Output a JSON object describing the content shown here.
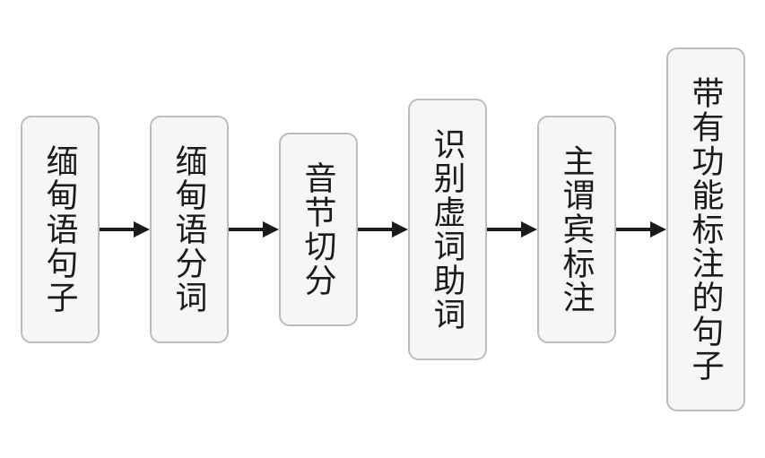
{
  "flowchart": {
    "type": "flowchart",
    "direction": "horizontal",
    "background_color": "#ffffff",
    "node_style": {
      "fill": "#f6f6f6",
      "border_color": "#bcbcbc",
      "border_width": 2,
      "border_radius": 12,
      "font_size": 36,
      "font_color": "#1b1b1b",
      "font_weight": "400",
      "width": 88,
      "padding_vertical": 30
    },
    "arrow_style": {
      "color": "#1b1b1b",
      "shaft_width": 4,
      "head_width": 18,
      "head_length": 18,
      "total_length": 56
    },
    "nodes": [
      {
        "id": "n1",
        "label": "缅甸语句子"
      },
      {
        "id": "n2",
        "label": "缅甸语分词"
      },
      {
        "id": "n3",
        "label": "音节切分"
      },
      {
        "id": "n4",
        "label": "识别虚词助词"
      },
      {
        "id": "n5",
        "label": "主谓宾标注"
      },
      {
        "id": "n6",
        "label": "带有功能标注的句子"
      }
    ],
    "edges": [
      {
        "from": "n1",
        "to": "n2"
      },
      {
        "from": "n2",
        "to": "n3"
      },
      {
        "from": "n3",
        "to": "n4"
      },
      {
        "from": "n4",
        "to": "n5"
      },
      {
        "from": "n5",
        "to": "n6"
      }
    ]
  }
}
